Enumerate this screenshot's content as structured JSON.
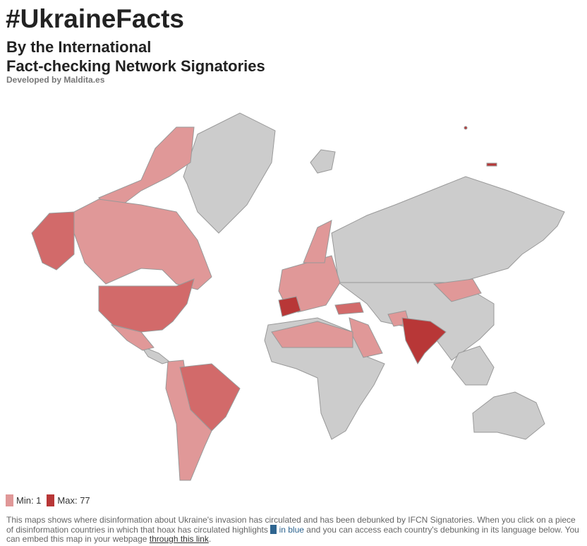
{
  "header": {
    "title": "#UkraineFacts",
    "subtitle_lines": [
      "By the International",
      "Fact-checking Network Signatories"
    ],
    "developer": "Developed by Maldita.es"
  },
  "legend": {
    "min": "Min: 1",
    "max": "Max: 77"
  },
  "footer": {
    "text_before": "This maps shows where disinformation about Ukraine's invasion has circulated and has been debunked by IFCN Signatories. When you click on a piece of disinformation countries in which that hoax has circulated highlights",
    "highlight": "in blue",
    "text_middle": "and you can access each country's debunking in its language below. You can embed this map in your webpage",
    "link": "through this link",
    "text_end": "."
  }
}
